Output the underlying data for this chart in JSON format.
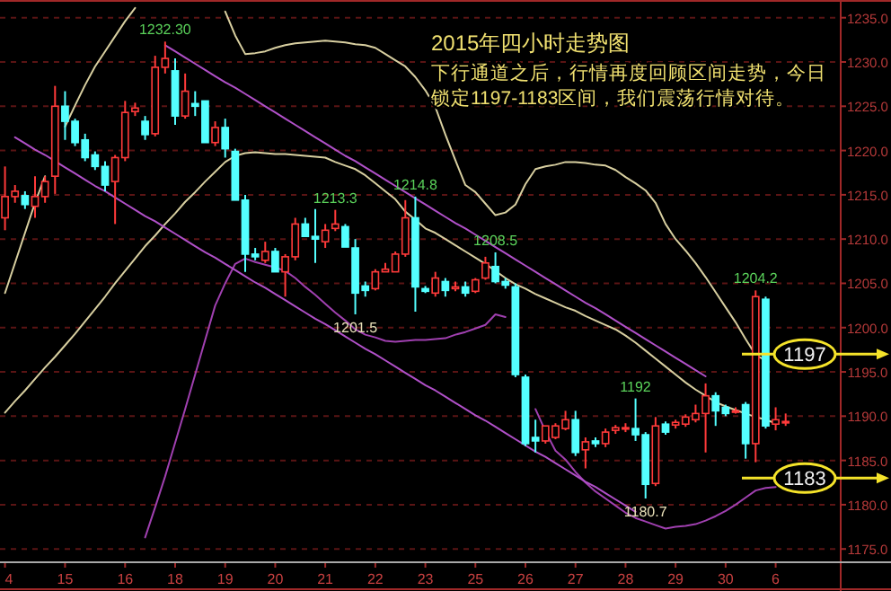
{
  "chart_data": {
    "type": "candlestick",
    "title": "2015年四小时走势图",
    "subtitle": "下行通道之后，行情再度回顾区间走势，今日锁定1197-1183区间，我们震荡行情对待。",
    "categories": [
      "4",
      null,
      null,
      null,
      null,
      null,
      "15",
      null,
      null,
      null,
      null,
      null,
      "16",
      null,
      null,
      null,
      null,
      "18",
      null,
      null,
      null,
      null,
      "19",
      null,
      null,
      null,
      null,
      "20",
      null,
      null,
      null,
      null,
      "21",
      null,
      null,
      null,
      null,
      "22",
      null,
      null,
      null,
      null,
      "23",
      null,
      null,
      null,
      null,
      "25",
      null,
      null,
      null,
      null,
      "26",
      null,
      null,
      null,
      null,
      "27",
      null,
      null,
      null,
      null,
      "28",
      null,
      null,
      null,
      null,
      "29",
      null,
      null,
      null,
      null,
      "30",
      null,
      null,
      null,
      null,
      "6",
      null
    ],
    "ohlc": [
      [
        1212.4,
        1218.2,
        1211.0,
        1214.8
      ],
      [
        1214.8,
        1216.1,
        1214.1,
        1215.4
      ],
      [
        1214.9,
        1215.4,
        1213.4,
        1213.9
      ],
      [
        1213.7,
        1217.1,
        1212.4,
        1214.8
      ],
      [
        1214.8,
        1217.1,
        1214.1,
        1216.5
      ],
      [
        1217.1,
        1227.3,
        1215.1,
        1225.0
      ],
      [
        1225.0,
        1226.7,
        1221.2,
        1223.3
      ],
      [
        1223.3,
        1223.6,
        1220.5,
        1220.9
      ],
      [
        1221.2,
        1221.9,
        1218.8,
        1219.2
      ],
      [
        1219.5,
        1219.9,
        1217.8,
        1218.2
      ],
      [
        1218.2,
        1218.8,
        1215.4,
        1216.1
      ],
      [
        1216.5,
        1219.5,
        1211.7,
        1219.2
      ],
      [
        1219.2,
        1225.6,
        1218.8,
        1224.3
      ],
      [
        1224.4,
        1225.4,
        1223.9,
        1224.8
      ],
      [
        1223.3,
        1223.9,
        1221.2,
        1221.8
      ],
      [
        1221.9,
        1230.7,
        1221.6,
        1229.4
      ],
      [
        1229.4,
        1232.3,
        1228.7,
        1230.4
      ],
      [
        1229.0,
        1230.4,
        1222.9,
        1223.9
      ],
      [
        1223.9,
        1228.7,
        1223.6,
        1226.7
      ],
      [
        1225.3,
        1226.7,
        1223.9,
        1225.0
      ],
      [
        1225.6,
        1225.6,
        1220.9,
        1220.9
      ],
      [
        1220.9,
        1223.3,
        1220.5,
        1222.6
      ],
      [
        1222.6,
        1223.6,
        1219.2,
        1220.2
      ],
      [
        1219.9,
        1220.2,
        1214.4,
        1214.4
      ],
      [
        1214.4,
        1215.0,
        1206.3,
        1208.3
      ],
      [
        1208.3,
        1209.0,
        1207.6,
        1208.0
      ],
      [
        1207.6,
        1209.7,
        1207.3,
        1208.6
      ],
      [
        1208.6,
        1209.0,
        1206.3,
        1206.3
      ],
      [
        1206.3,
        1208.3,
        1203.5,
        1208.0
      ],
      [
        1208.0,
        1212.4,
        1207.6,
        1211.7
      ],
      [
        1211.7,
        1212.4,
        1210.3,
        1210.3
      ],
      [
        1210.3,
        1213.4,
        1207.3,
        1210.0
      ],
      [
        1209.7,
        1211.7,
        1209.0,
        1211.0
      ],
      [
        1211.2,
        1213.3,
        1210.9,
        1211.7
      ],
      [
        1211.4,
        1211.7,
        1209.1,
        1209.1
      ],
      [
        1209.0,
        1210.0,
        1201.5,
        1203.9
      ],
      [
        1204.7,
        1205.2,
        1203.5,
        1204.2
      ],
      [
        1204.4,
        1206.6,
        1204.2,
        1206.3
      ],
      [
        1206.3,
        1207.3,
        1206.3,
        1206.6
      ],
      [
        1206.3,
        1208.6,
        1206.3,
        1208.3
      ],
      [
        1208.3,
        1214.4,
        1208.0,
        1212.4
      ],
      [
        1212.4,
        1214.8,
        1201.8,
        1204.6
      ],
      [
        1204.4,
        1204.7,
        1203.9,
        1204.1
      ],
      [
        1203.9,
        1206.3,
        1203.5,
        1205.6
      ],
      [
        1205.2,
        1205.6,
        1203.5,
        1204.2
      ],
      [
        1204.4,
        1205.2,
        1204.1,
        1204.6
      ],
      [
        1204.6,
        1205.2,
        1203.5,
        1203.9
      ],
      [
        1204.1,
        1205.6,
        1203.9,
        1205.4
      ],
      [
        1205.6,
        1208.0,
        1205.4,
        1207.3
      ],
      [
        1206.9,
        1208.5,
        1205.0,
        1205.2
      ],
      [
        1205.2,
        1205.6,
        1204.4,
        1204.8
      ],
      [
        1204.6,
        1205.0,
        1194.4,
        1194.7
      ],
      [
        1194.4,
        1194.7,
        1186.6,
        1186.9
      ],
      [
        1187.6,
        1189.6,
        1185.9,
        1187.2
      ],
      [
        1187.2,
        1188.9,
        1186.9,
        1188.9
      ],
      [
        1187.6,
        1189.2,
        1187.4,
        1188.9
      ],
      [
        1188.6,
        1190.6,
        1188.4,
        1189.6
      ],
      [
        1189.6,
        1190.6,
        1185.5,
        1185.9
      ],
      [
        1186.2,
        1187.6,
        1184.1,
        1187.1
      ],
      [
        1187.2,
        1187.6,
        1186.5,
        1186.9
      ],
      [
        1186.9,
        1188.6,
        1186.5,
        1188.2
      ],
      [
        1188.4,
        1189.0,
        1188.0,
        1188.7
      ],
      [
        1188.6,
        1189.2,
        1188.2,
        1188.7
      ],
      [
        1188.6,
        1192.0,
        1187.2,
        1187.9
      ],
      [
        1187.9,
        1188.2,
        1180.7,
        1182.3
      ],
      [
        1182.4,
        1189.9,
        1182.1,
        1188.9
      ],
      [
        1189.1,
        1189.4,
        1187.9,
        1188.2
      ],
      [
        1189.0,
        1189.6,
        1188.6,
        1189.3
      ],
      [
        1189.1,
        1190.2,
        1188.8,
        1189.9
      ],
      [
        1189.6,
        1191.3,
        1189.3,
        1190.3
      ],
      [
        1190.3,
        1193.7,
        1185.9,
        1192.3
      ],
      [
        1192.3,
        1192.7,
        1188.9,
        1190.6
      ],
      [
        1191.0,
        1191.3,
        1190.0,
        1190.3
      ],
      [
        1190.6,
        1191.0,
        1190.3,
        1190.6
      ],
      [
        1191.3,
        1191.6,
        1185.2,
        1186.9
      ],
      [
        1186.9,
        1204.2,
        1184.8,
        1203.5
      ],
      [
        1203.2,
        1203.5,
        1188.6,
        1188.9
      ],
      [
        1189.1,
        1191.0,
        1188.4,
        1189.6
      ],
      [
        1189.4,
        1190.3,
        1188.9,
        1189.4
      ]
    ],
    "series": [
      {
        "type": "line",
        "color": "#d8cfa0",
        "values": [
          1203.9,
          1207.3,
          1210.7,
          1214.1,
          1217.1,
          null,
          1222.7,
          1225.1,
          1227.4,
          1229.5,
          1231.2,
          1232.9,
          1234.6,
          1236.1,
          null,
          null,
          null,
          null,
          null,
          null,
          null,
          null,
          1235.7,
          1233.0,
          1230.9,
          1231.0,
          1231.2,
          1231.6,
          1231.9,
          1232.1,
          1232.2,
          1232.3,
          1232.4,
          1232.3,
          1232.2,
          1232.0,
          1231.9,
          1231.6,
          1230.9,
          1230.2,
          1229.5,
          1228.3,
          1226.8,
          1224.9,
          1221.8,
          1218.9,
          1216.1,
          1215.3,
          1214.0,
          1212.7,
          1213.0,
          1213.9,
          1216.2,
          1217.9,
          1218.2,
          1218.4,
          1218.7,
          1218.7,
          1218.6,
          1218.4,
          1218.3,
          1217.8,
          1217.0,
          1216.3,
          1215.5,
          1214.1,
          1211.7,
          1210.0,
          1208.7,
          1207.3,
          1205.7,
          1204.0,
          1202.3,
          1200.6,
          1198.7,
          1196.9,
          1196.3,
          null,
          null
        ]
      },
      {
        "type": "line",
        "color": "#d8cfa0",
        "values": [
          1190.4,
          1191.7,
          1192.9,
          1194.2,
          1195.5,
          1196.7,
          1198.0,
          1199.3,
          1200.7,
          1202.1,
          1203.5,
          1205.0,
          1206.4,
          1207.8,
          1209.2,
          1210.4,
          1211.7,
          1212.9,
          1214.2,
          1215.3,
          1216.5,
          1217.6,
          1218.7,
          1219.4,
          1219.7,
          1219.8,
          1219.7,
          1219.6,
          1219.6,
          1219.5,
          1219.4,
          1219.3,
          1219.2,
          1218.7,
          1218.3,
          1217.9,
          1217.2,
          1216.3,
          1215.4,
          1214.5,
          1213.1,
          1212.2,
          1211.2,
          1210.7,
          1210.0,
          1209.3,
          1208.6,
          1207.9,
          1207.2,
          1206.4,
          1205.6,
          1204.9,
          1204.4,
          1203.8,
          1203.3,
          1202.8,
          1202.3,
          1201.9,
          1201.3,
          1200.8,
          1200.3,
          1199.8,
          1199.1,
          1198.3,
          1197.4,
          1196.5,
          1195.6,
          1194.7,
          1193.8,
          1193.0,
          1192.3,
          1191.6,
          1191.1,
          1190.7,
          1190.3,
          1189.9,
          1189.6,
          1189.2,
          null
        ]
      },
      {
        "type": "line",
        "color": "#a040b0",
        "values": [
          null,
          null,
          null,
          null,
          null,
          null,
          null,
          null,
          null,
          null,
          null,
          null,
          null,
          null,
          1176.3,
          1179.7,
          1183.2,
          1187.0,
          1190.8,
          1194.7,
          1198.6,
          1202.5,
          1205.0,
          1207.2,
          1207.8,
          1207.4,
          1207.1,
          1206.8,
          1206.4,
          1205.6,
          1204.6,
          1203.7,
          1202.7,
          1201.7,
          1200.8,
          1199.8,
          1199.2,
          1198.9,
          1198.5,
          1198.4,
          1198.5,
          1198.6,
          1198.6,
          1198.7,
          1198.8,
          1199.2,
          1199.5,
          1199.9,
          1200.3,
          1201.5,
          1201.2,
          null,
          null,
          1190.8,
          1188.3,
          1186.1,
          1185.1,
          1183.7,
          1182.5,
          1181.5,
          1180.7,
          1179.9,
          1179.1,
          1178.5,
          1178.1,
          1177.7,
          1177.3,
          1177.5,
          1177.6,
          1177.8,
          1178.2,
          1178.7,
          1179.3,
          1180.0,
          1180.8,
          1181.6,
          1181.9,
          1182.0,
          null
        ]
      },
      {
        "type": "line",
        "color": "#b050c8",
        "values": [
          null,
          null,
          null,
          null,
          null,
          null,
          null,
          null,
          null,
          null,
          null,
          null,
          null,
          null,
          null,
          null,
          1231.9,
          1231.2,
          1230.5,
          1229.8,
          1229.1,
          1228.4,
          1227.7,
          1227.1,
          1226.4,
          1225.7,
          1225.0,
          1224.3,
          1223.6,
          1222.9,
          1222.2,
          1221.5,
          1220.8,
          1220.1,
          1219.4,
          1218.8,
          1218.1,
          1217.4,
          1216.7,
          1216.0,
          1215.3,
          1214.6,
          1213.9,
          1213.2,
          1212.5,
          1211.8,
          1211.2,
          1210.5,
          1209.8,
          1209.1,
          1208.4,
          1207.7,
          1207.0,
          1206.3,
          1205.6,
          1204.9,
          1204.2,
          1203.5,
          1202.8,
          1202.2,
          1201.5,
          1200.8,
          1200.1,
          1199.4,
          1198.7,
          1198.0,
          1197.3,
          1196.6,
          1195.9,
          1195.2,
          1194.5,
          null,
          null,
          null,
          null,
          null,
          null,
          null,
          null
        ]
      },
      {
        "type": "line",
        "color": "#b050c8",
        "values": [
          null,
          1221.5,
          1220.8,
          1220.1,
          1219.5,
          1218.8,
          1218.1,
          1217.4,
          1216.7,
          1216.0,
          1215.4,
          1214.7,
          1214.0,
          1213.3,
          1212.6,
          1212.0,
          1211.3,
          1210.6,
          1209.9,
          1209.2,
          1208.5,
          1207.9,
          1207.2,
          1206.5,
          1205.8,
          1205.1,
          1204.5,
          1203.8,
          1203.1,
          1202.4,
          1201.7,
          1201.0,
          1200.4,
          1199.7,
          1199.0,
          1198.3,
          1197.6,
          1197.0,
          1196.3,
          1195.6,
          1194.9,
          1194.2,
          1193.5,
          1192.9,
          1192.2,
          1191.5,
          1190.8,
          1190.1,
          1189.5,
          1188.8,
          1188.1,
          1187.4,
          1186.7,
          1186.0,
          1185.4,
          1184.7,
          1184.0,
          1183.3,
          1182.6,
          1182.0,
          1181.3,
          1180.6,
          1179.9,
          1179.2,
          null,
          null,
          null,
          null,
          null,
          null,
          null,
          null,
          null,
          null,
          null,
          null,
          null,
          null,
          null
        ]
      }
    ],
    "annotations": [
      {
        "text": "1232.30",
        "y": 1232.3
      },
      {
        "text": "1213.3",
        "y": 1213.3
      },
      {
        "text": "1214.8",
        "y": 1214.8
      },
      {
        "text": "1201.5",
        "y": 1201.5
      },
      {
        "text": "1208.5",
        "y": 1208.5
      },
      {
        "text": "1192",
        "y": 1192.0
      },
      {
        "text": "1180.7",
        "y": 1180.7
      },
      {
        "text": "1204.2",
        "y": 1204.2
      }
    ],
    "ref_lines": [
      {
        "axis": "y",
        "value": 1197,
        "label": "1197",
        "color": "#f5e32a"
      },
      {
        "axis": "y",
        "value": 1183,
        "label": "1183",
        "color": "#f5e32a"
      }
    ],
    "ylim": [
      1173.5,
      1237
    ],
    "yticks": [
      {
        "value": 1175,
        "label": "1175.0"
      },
      {
        "value": 1180,
        "label": "1180.0"
      },
      {
        "value": 1185,
        "label": "1185.0"
      },
      {
        "value": 1190,
        "label": "1190.0"
      },
      {
        "value": 1195,
        "label": "1195.0"
      },
      {
        "value": 1200,
        "label": "1200.0"
      },
      {
        "value": 1205,
        "label": "1205.0"
      },
      {
        "value": 1210,
        "label": "1210.0"
      },
      {
        "value": 1215,
        "label": "1215.0"
      },
      {
        "value": 1220,
        "label": "1220.0"
      },
      {
        "value": 1225,
        "label": "1225.0"
      },
      {
        "value": 1230,
        "label": "1230.0"
      },
      {
        "value": 1235,
        "label": "1235.0"
      }
    ],
    "grid": "y"
  }
}
